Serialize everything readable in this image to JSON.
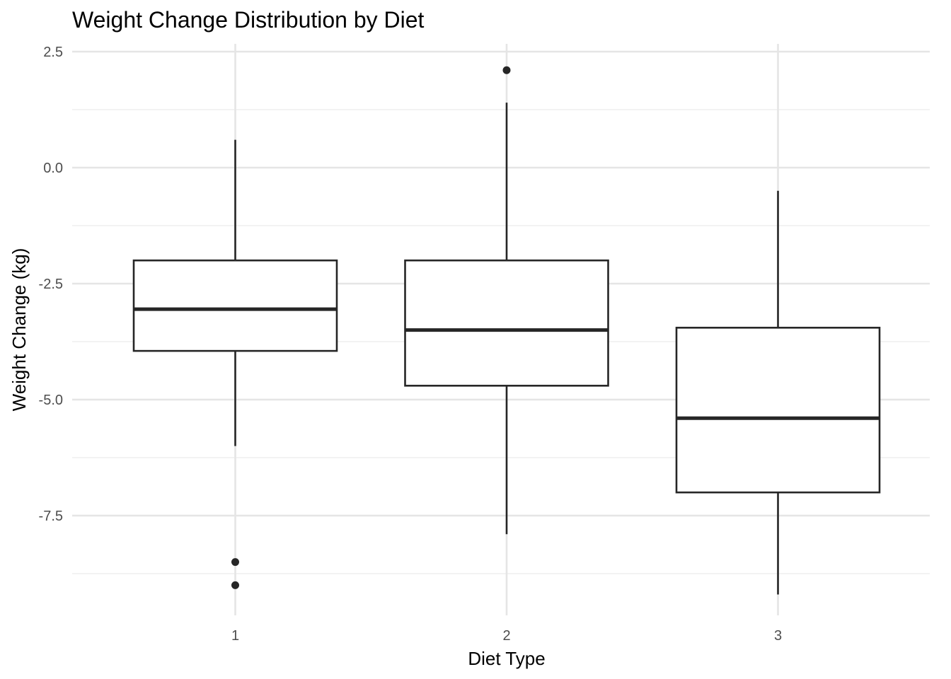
{
  "chart_data": {
    "type": "boxplot",
    "title": "Weight Change Distribution by Diet",
    "xlabel": "Diet Type",
    "ylabel": "Weight Change (kg)",
    "categories": [
      "1",
      "2",
      "3"
    ],
    "ylim": [
      -9.75,
      2.85
    ],
    "y_major_ticks": [
      2.5,
      0.0,
      -2.5,
      -5.0,
      -7.5
    ],
    "y_tick_labels": [
      "2.5",
      "0.0",
      "-2.5",
      "-5.0",
      "-7.5"
    ],
    "y_minor_ticks": [
      1.25,
      -1.25,
      -3.75,
      -6.25,
      -8.75
    ],
    "grid": true,
    "boxes": [
      {
        "category": "1",
        "whisker_low": -6.0,
        "q1": -3.95,
        "median": -3.05,
        "q3": -2.0,
        "whisker_high": 0.6,
        "outliers": [
          -8.5,
          -9.0
        ]
      },
      {
        "category": "2",
        "whisker_low": -7.9,
        "q1": -4.7,
        "median": -3.5,
        "q3": -2.0,
        "whisker_high": 1.4,
        "outliers": [
          2.1
        ]
      },
      {
        "category": "3",
        "whisker_low": -9.2,
        "q1": -7.0,
        "median": -5.4,
        "q3": -3.45,
        "whisker_high": -0.5,
        "outliers": []
      }
    ],
    "colors": {
      "box_stroke": "#262626",
      "box_fill": "#ffffff",
      "grid": "#e5e5e5",
      "tick_text": "#4d4d4d"
    }
  }
}
